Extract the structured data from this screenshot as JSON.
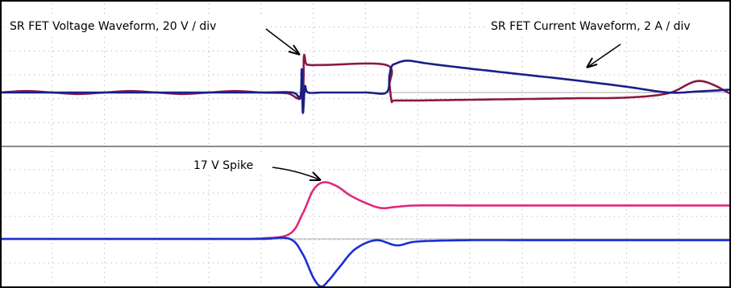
{
  "annotations": {
    "voltage_label": "SR FET Voltage Waveform, 20 V / div",
    "current_label": "SR FET Current Waveform, 2 A / div",
    "spike_label": "17 V Spike"
  },
  "colors": {
    "pink": "#e0287d",
    "maroon": "#8a1848",
    "blue": "#1a2fd0",
    "navy": "#1a1e86",
    "grid": "#a9a9a9",
    "divider": "#8a8a8a",
    "arrow": "#000000"
  },
  "chart_data": [
    {
      "type": "line",
      "panel": "top",
      "grid": true,
      "x_divisions": 14,
      "y_divisions": 6,
      "series": [
        {
          "color": "#8a1848",
          "x": [
            0,
            0.5,
            1,
            1.5,
            2,
            2.5,
            3,
            3.5,
            4,
            4.5,
            5,
            5.5,
            5.78,
            5.82,
            5.86,
            5.94,
            6.2,
            7.4,
            7.46,
            7.5,
            7.56,
            8,
            9,
            10,
            11,
            12,
            12.8,
            13.4,
            14
          ],
          "y": [
            0,
            0.1,
            0,
            -0.1,
            0,
            0.1,
            0,
            -0.1,
            0,
            0.1,
            0,
            -0.05,
            -0.3,
            2.5,
            2.0,
            1.9,
            1.9,
            1.9,
            0.5,
            -0.6,
            -0.55,
            -0.55,
            -0.5,
            -0.45,
            -0.4,
            -0.35,
            -0.05,
            0.8,
            -0.1
          ]
        },
        {
          "color": "#1a1e86",
          "x": [
            0,
            1,
            2,
            3,
            4,
            5,
            5.6,
            5.75,
            5.78,
            5.8,
            5.84,
            5.9,
            6.2,
            7,
            7.4,
            7.46,
            7.5,
            7.58,
            7.8,
            8.2,
            9,
            10,
            11,
            12,
            12.8,
            13.4,
            14
          ],
          "y": [
            0,
            0,
            0,
            0,
            0,
            0,
            0,
            -0.3,
            1.6,
            -1.4,
            0.4,
            0,
            0,
            0,
            0,
            1.2,
            1.8,
            2.0,
            2.2,
            2.0,
            1.65,
            1.25,
            0.85,
            0.4,
            0,
            0.08,
            0.2
          ]
        }
      ]
    },
    {
      "type": "line",
      "panel": "bottom",
      "grid": true,
      "x_divisions": 14,
      "y_divisions": 6,
      "series": [
        {
          "color": "#e0287d",
          "x": [
            0,
            1,
            2,
            3,
            4,
            5,
            5.55,
            5.8,
            6.0,
            6.2,
            6.45,
            6.7,
            7.0,
            7.3,
            7.6,
            8,
            9,
            10,
            11,
            12,
            13,
            14
          ],
          "y": [
            0,
            0,
            0,
            0,
            0,
            0.02,
            0.2,
            1.0,
            1.9,
            2.2,
            2.05,
            1.7,
            1.4,
            1.2,
            1.25,
            1.3,
            1.3,
            1.3,
            1.3,
            1.3,
            1.3,
            1.3
          ]
        },
        {
          "color": "#1a2fd0",
          "x": [
            0,
            1,
            2,
            3,
            4,
            5,
            5.55,
            5.8,
            6.0,
            6.15,
            6.3,
            6.5,
            6.8,
            7.2,
            7.6,
            8,
            9,
            10,
            11,
            12,
            13,
            14
          ],
          "y": [
            0,
            0,
            0,
            0,
            0,
            0,
            0,
            -0.6,
            -1.5,
            -1.85,
            -1.6,
            -1.1,
            -0.4,
            -0.05,
            -0.25,
            -0.1,
            -0.05,
            -0.05,
            -0.05,
            -0.05,
            -0.05,
            -0.05
          ]
        }
      ]
    }
  ]
}
